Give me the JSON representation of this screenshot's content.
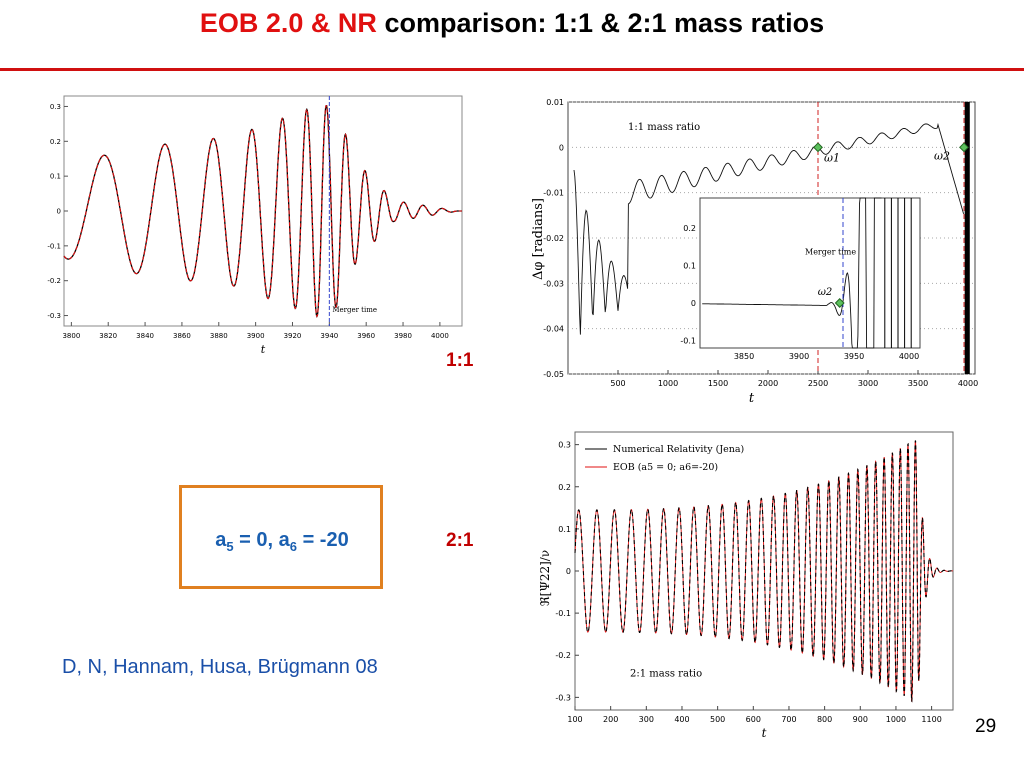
{
  "slide": {
    "title_red": "EOB 2.0 & NR",
    "title_black": " comparison: 1:1 & 2:1 mass ratios",
    "label_11": "1:1",
    "label_21": "2:1",
    "box_a5": "a",
    "box_a5_sub": "5",
    "box_mid": " = 0, a",
    "box_a6_sub": "6",
    "box_end": " = -20",
    "citation": "D, N, Hannam, Husa, Brügmann 08",
    "page_number": "29",
    "accent_color": "#e01010",
    "box_border_color": "#e08020",
    "text_blue": "#1a5fb0"
  },
  "chart_data": [
    {
      "type": "line",
      "panel": "1:1 waveform",
      "xlabel": "t",
      "ylabel": "",
      "xlim": [
        3796,
        4012
      ],
      "ylim": [
        -0.33,
        0.33
      ],
      "x_ticks": [
        "3800",
        "3820",
        "3840",
        "3860",
        "3880",
        "3900",
        "3920",
        "3940",
        "3960",
        "3980",
        "4000"
      ],
      "y_ticks": [
        "0.3",
        "0.2",
        "0.1",
        "0",
        "-0.1",
        "-0.2",
        "-0.3"
      ],
      "annotations": [
        {
          "text": "Merger time",
          "x": 3940
        }
      ],
      "series": [
        {
          "color": "#000000",
          "style": "solid"
        },
        {
          "color": "#e01010",
          "style": "dashed"
        }
      ],
      "envelope_peaks": [
        {
          "t": 3800,
          "amp": 0.14
        },
        {
          "t": 3840,
          "amp": 0.185
        },
        {
          "t": 3888,
          "amp": 0.215
        },
        {
          "t": 3927,
          "amp": 0.29
        },
        {
          "t": 3937,
          "amp": 0.31
        },
        {
          "t": 3945,
          "amp": 0.27
        },
        {
          "t": 3955,
          "amp": 0.14
        },
        {
          "t": 3975,
          "amp": 0.03
        },
        {
          "t": 4010,
          "amp": 0.0
        }
      ]
    },
    {
      "type": "line",
      "panel": "1:1 phase difference",
      "xlabel": "t",
      "ylabel": "Δφ [radians]",
      "xlim": [
        0,
        4070
      ],
      "ylim": [
        -0.05,
        0.01
      ],
      "x_ticks": [
        "500",
        "1000",
        "1500",
        "2000",
        "2500",
        "3000",
        "3500",
        "4000"
      ],
      "y_ticks": [
        "0.01",
        "0",
        "-0.01",
        "-0.02",
        "-0.03",
        "-0.04",
        "-0.05"
      ],
      "annotations": [
        {
          "text": "1:1 mass ratio"
        },
        {
          "text": "ω1",
          "x": 2500,
          "y": 0.0
        },
        {
          "text": "ω2",
          "x": 3960,
          "y": 0.0
        }
      ],
      "inset": {
        "xlim": [
          3810,
          4010
        ],
        "ylim": [
          -0.12,
          0.28
        ],
        "x_ticks": [
          "3850",
          "3900",
          "3950",
          "4000"
        ],
        "y_ticks": [
          "0.2",
          "0.1",
          "0",
          "-0.1"
        ],
        "annotations": [
          {
            "text": "Merger time",
            "x": 3940
          },
          {
            "text": "ω2",
            "x": 3937,
            "y": 0.0
          }
        ]
      }
    },
    {
      "type": "line",
      "panel": "2:1 waveform",
      "xlabel": "t",
      "ylabel": "ℜ[Ψ22]/ν",
      "xlim": [
        100,
        1160
      ],
      "ylim": [
        -0.33,
        0.33
      ],
      "x_ticks": [
        "100",
        "200",
        "300",
        "400",
        "500",
        "600",
        "700",
        "800",
        "900",
        "1000",
        "1100"
      ],
      "y_ticks": [
        "0.3",
        "0.2",
        "0.1",
        "0",
        "-0.1",
        "-0.2",
        "-0.3"
      ],
      "annotations": [
        {
          "text": "2:1 mass ratio"
        }
      ],
      "series": [
        {
          "name": "Numerical Relativity (Jena)",
          "color": "#000000",
          "style": "dashed"
        },
        {
          "name": "EOB (a5 = 0; a6=-20)",
          "color": "#e01010",
          "style": "solid"
        }
      ]
    }
  ]
}
